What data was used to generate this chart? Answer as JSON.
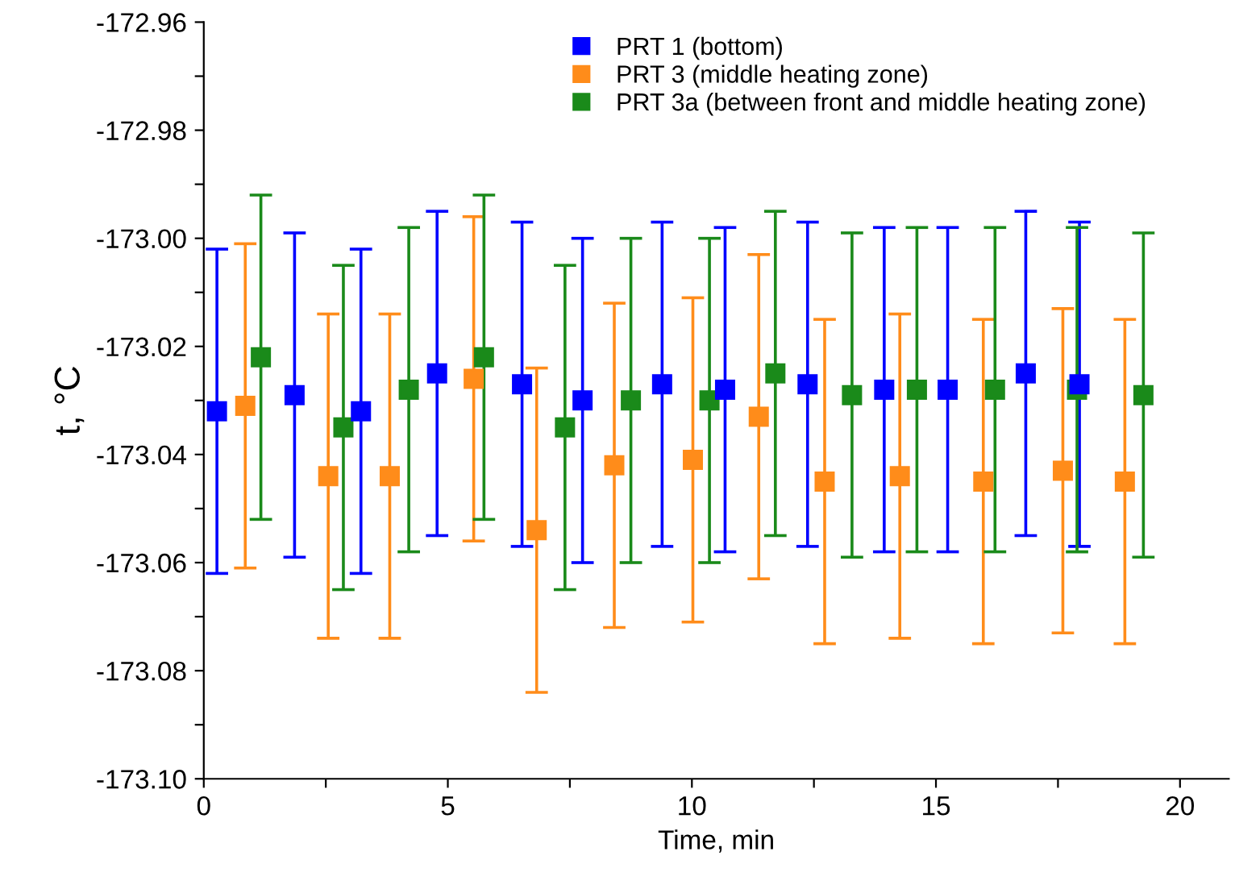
{
  "chart_data": {
    "type": "scatter",
    "xlabel": "Time, min",
    "ylabel": "t, °C",
    "xlim": [
      0,
      21
    ],
    "ylim": [
      -173.1,
      -172.96
    ],
    "xticks": [
      0,
      {
        "value": 2.5,
        "label": null
      },
      5,
      {
        "value": 7.5,
        "label": null
      },
      10,
      {
        "value": 12.5,
        "label": null
      },
      15,
      {
        "value": 17.5,
        "label": null
      },
      20
    ],
    "yticks": [
      {
        "value": -173.1,
        "label": "-173.10"
      },
      {
        "value": -173.09,
        "label": null
      },
      {
        "value": -173.08,
        "label": "-173.08"
      },
      {
        "value": -173.07,
        "label": null
      },
      {
        "value": -173.06,
        "label": "-173.06"
      },
      {
        "value": -173.05,
        "label": null
      },
      {
        "value": -173.04,
        "label": "-173.04"
      },
      {
        "value": -173.03,
        "label": null
      },
      {
        "value": -173.02,
        "label": "-173.02"
      },
      {
        "value": -173.01,
        "label": null
      },
      {
        "value": -173.0,
        "label": "-173.00"
      },
      {
        "value": -172.99,
        "label": null
      },
      {
        "value": -172.98,
        "label": "-172.98"
      },
      {
        "value": -172.97,
        "label": null
      },
      {
        "value": -172.96,
        "label": "-172.96"
      }
    ],
    "marker": "square",
    "legend": "top",
    "grid": false,
    "series": [
      {
        "name": "PRT 1 (bottom)",
        "color": "#0000ff",
        "x": [
          0.27,
          1.86,
          3.22,
          4.78,
          6.52,
          7.76,
          9.39,
          10.68,
          12.37,
          13.94,
          15.24,
          16.84,
          17.94
        ],
        "values": [
          -173.032,
          -173.029,
          -173.032,
          -173.025,
          -173.027,
          -173.03,
          -173.027,
          -173.028,
          -173.027,
          -173.028,
          -173.028,
          -173.025,
          -173.027
        ],
        "errors": [
          0.03,
          0.03,
          0.03,
          0.03,
          0.03,
          0.03,
          0.03,
          0.03,
          0.03,
          0.03,
          0.03,
          0.03,
          0.03
        ]
      },
      {
        "name": "PRT 3 (middle heating zone)",
        "color": "#ff8c1a",
        "x": [
          0.85,
          2.55,
          3.81,
          5.53,
          6.82,
          8.41,
          10.02,
          11.37,
          12.72,
          14.26,
          15.97,
          17.6,
          18.87
        ],
        "values": [
          -173.031,
          -173.044,
          -173.044,
          -173.026,
          -173.054,
          -173.042,
          -173.041,
          -173.033,
          -173.045,
          -173.044,
          -173.045,
          -173.043,
          -173.045
        ],
        "errors": [
          0.03,
          0.03,
          0.03,
          0.03,
          0.03,
          0.03,
          0.03,
          0.03,
          0.03,
          0.03,
          0.03,
          0.03,
          0.03
        ]
      },
      {
        "name": "PRT 3a (between front and middle heating zone)",
        "color": "#1a8a1a",
        "x": [
          1.17,
          2.86,
          4.2,
          5.74,
          7.4,
          8.75,
          10.36,
          11.71,
          13.28,
          14.61,
          16.21,
          17.89,
          19.25
        ],
        "values": [
          -173.022,
          -173.035,
          -173.028,
          -173.022,
          -173.035,
          -173.03,
          -173.03,
          -173.025,
          -173.029,
          -173.028,
          -173.028,
          -173.028,
          -173.029
        ],
        "errors": [
          0.03,
          0.03,
          0.03,
          0.03,
          0.03,
          0.03,
          0.03,
          0.03,
          0.03,
          0.03,
          0.03,
          0.03,
          0.03
        ]
      }
    ]
  }
}
